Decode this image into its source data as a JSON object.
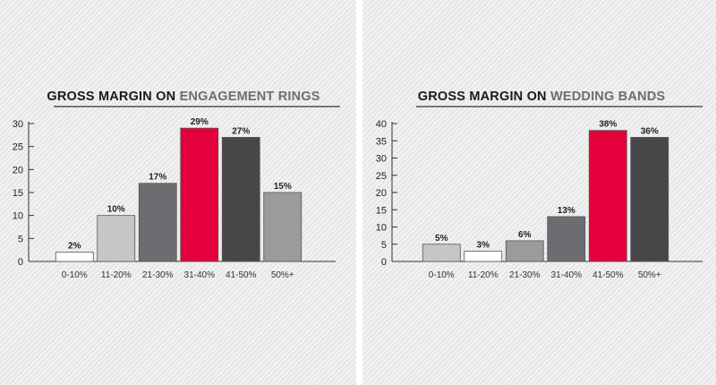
{
  "chart_data": [
    {
      "type": "bar",
      "title_prefix": "GROSS MARGIN ON ",
      "title_highlight": "ENGAGEMENT RINGS",
      "categories": [
        "0-10%",
        "11-20%",
        "21-30%",
        "31-40%",
        "41-50%",
        "50%+"
      ],
      "values": [
        2,
        10,
        17,
        29,
        27,
        15
      ],
      "value_labels": [
        "2%",
        "10%",
        "17%",
        "29%",
        "27%",
        "15%"
      ],
      "bar_colors": [
        "#ffffff",
        "#c5c6c8",
        "#6c6d70",
        "#e4003a",
        "#474749",
        "#9a9b9d"
      ],
      "ylim": [
        0,
        30
      ],
      "yticks": [
        "0",
        "5",
        "10",
        "15",
        "20",
        "25",
        "30"
      ],
      "grid": false,
      "xlabel": "",
      "ylabel": ""
    },
    {
      "type": "bar",
      "title_prefix": "GROSS MARGIN ON ",
      "title_highlight": "WEDDING BANDS",
      "categories": [
        "0-10%",
        "11-20%",
        "21-30%",
        "31-40%",
        "41-50%",
        "50%+"
      ],
      "values": [
        5,
        3,
        6,
        13,
        38,
        36
      ],
      "value_labels": [
        "5%",
        "3%",
        "6%",
        "13%",
        "38%",
        "36%"
      ],
      "bar_colors": [
        "#c5c6c8",
        "#ffffff",
        "#9a9b9d",
        "#6c6d70",
        "#e4003a",
        "#474749"
      ],
      "ylim": [
        0,
        40
      ],
      "yticks": [
        "0",
        "5",
        "10",
        "15",
        "20",
        "25",
        "30",
        "35",
        "40"
      ],
      "grid": false,
      "xlabel": "",
      "ylabel": ""
    }
  ],
  "colors": {
    "title_dark": "#1a1a1a",
    "title_highlight": "#6d6e70",
    "axis": "#333333",
    "bar_stroke": "#555555"
  }
}
